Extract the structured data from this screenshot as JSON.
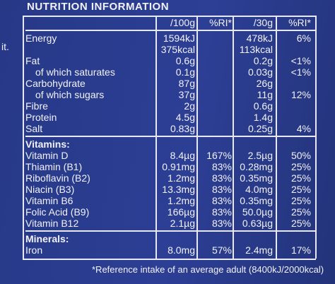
{
  "title": "NUTRITION INFORMATION",
  "edge_fragment": "it.",
  "columns": [
    "/100g",
    "%RI*",
    "/30g",
    "%RI*"
  ],
  "sections": [
    {
      "rows": [
        {
          "name": "Energy",
          "cells": [
            "1594kJ",
            null,
            "478kJ",
            "6%"
          ]
        },
        {
          "name": null,
          "cells": [
            "375kcal",
            null,
            "113kcal",
            null
          ]
        },
        {
          "name": "Fat",
          "cells": [
            "0.6g",
            null,
            "0.2g",
            "<1%"
          ]
        },
        {
          "name": "of which saturates",
          "sub": true,
          "cells": [
            "0.1g",
            null,
            "0.03g",
            "<1%"
          ]
        },
        {
          "name": "Carbohydrate",
          "cells": [
            "87g",
            null,
            "26g",
            null
          ]
        },
        {
          "name": "of which sugars",
          "sub": true,
          "cells": [
            "37g",
            null,
            "11g",
            "12%"
          ]
        },
        {
          "name": "Fibre",
          "cells": [
            "2g",
            null,
            "0.6g",
            null
          ]
        },
        {
          "name": "Protein",
          "cells": [
            "4.5g",
            null,
            "1.4g",
            null
          ]
        },
        {
          "name": "Salt",
          "cells": [
            "0.83g",
            null,
            "0.25g",
            "4%"
          ]
        }
      ]
    },
    {
      "heading": "Vitamins:",
      "rows": [
        {
          "name": "Vitamin D",
          "cells": [
            "8.4µg",
            "167%",
            "2.5µg",
            "50%"
          ]
        },
        {
          "name": "Thiamin (B1)",
          "cells": [
            "0.91mg",
            "83%",
            "0.28mg",
            "25%"
          ]
        },
        {
          "name": "Riboflavin (B2)",
          "cells": [
            "1.2mg",
            "83%",
            "0.35mg",
            "25%"
          ]
        },
        {
          "name": "Niacin (B3)",
          "cells": [
            "13.3mg",
            "83%",
            "4.0mg",
            "25%"
          ]
        },
        {
          "name": "Vitamin B6",
          "cells": [
            "1.2mg",
            "83%",
            "0.35mg",
            "25%"
          ]
        },
        {
          "name": "Folic Acid (B9)",
          "cells": [
            "166µg",
            "83%",
            "50.0µg",
            "25%"
          ]
        },
        {
          "name": "Vitamin B12",
          "cells": [
            "2.1µg",
            "83%",
            "0.63µg",
            "25%"
          ]
        }
      ]
    },
    {
      "heading": "Minerals:",
      "rows": [
        {
          "name": "Iron",
          "cells": [
            "8.0mg",
            "57%",
            "2.4mg",
            "17%"
          ]
        }
      ]
    }
  ],
  "footnote": "*Reference intake of an average adult (8400kJ/2000kcal)"
}
